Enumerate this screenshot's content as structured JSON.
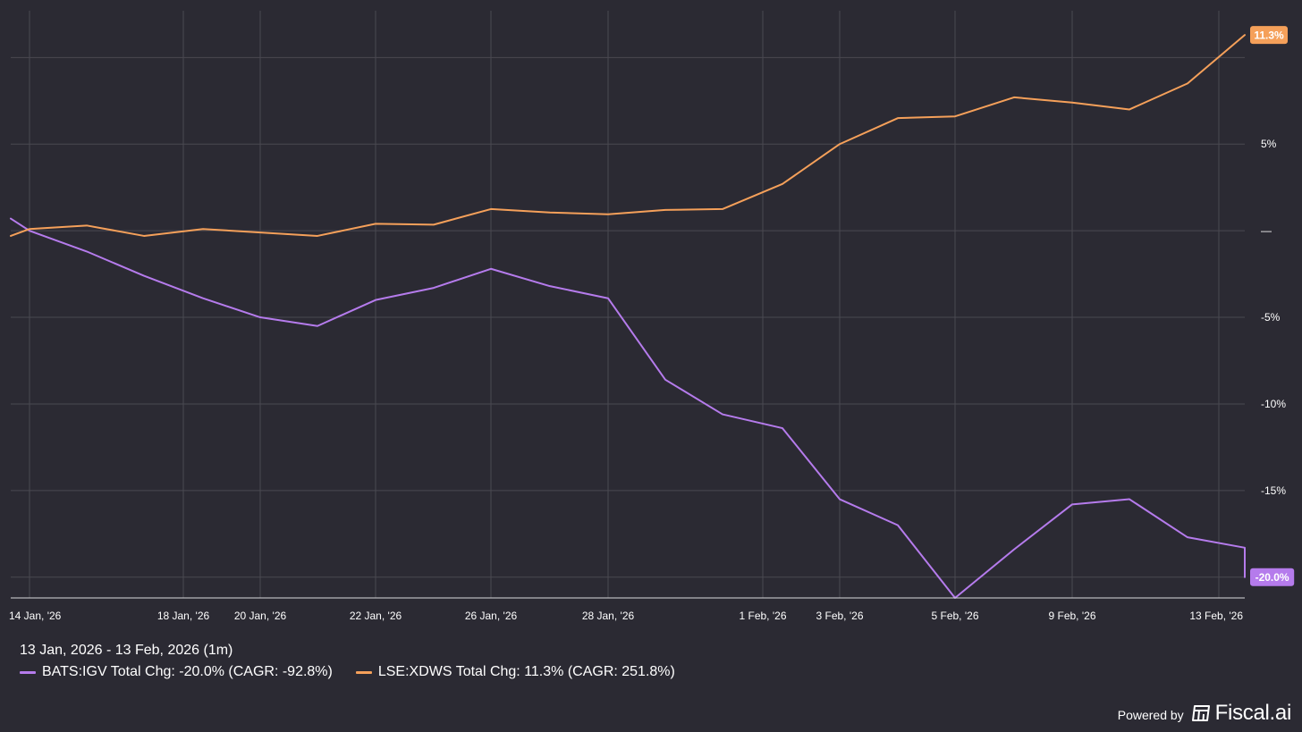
{
  "chart_data": {
    "type": "line",
    "x": [
      "13 Jan, '26",
      "14 Jan, '26",
      "15 Jan, '26",
      "16 Jan, '26",
      "17 Jan, '26",
      "18 Jan, '26",
      "19 Jan, '26",
      "20 Jan, '26",
      "21 Jan, '26",
      "22 Jan, '26",
      "23 Jan, '26",
      "24 Jan, '26",
      "26 Jan, '26",
      "27 Jan, '26",
      "28 Jan, '26",
      "29 Jan, '26",
      "30 Jan, '26",
      "31 Jan, '26",
      "1 Feb, '26",
      "3 Feb, '26",
      "4 Feb, '26",
      "5 Feb, '26",
      "6 Feb, '26",
      "7 Feb, '26",
      "9 Feb, '26",
      "10 Feb, '26",
      "11 Feb, '26",
      "13 Feb, '26"
    ],
    "x_ticks": [
      "14 Jan, '26",
      "18 Jan, '26",
      "20 Jan, '26",
      "22 Jan, '26",
      "26 Jan, '26",
      "28 Jan, '26",
      "1 Feb, '26",
      "3 Feb, '26",
      "5 Feb, '26",
      "9 Feb, '26",
      "13 Feb, '26"
    ],
    "series": [
      {
        "name": "BATS:IGV",
        "color": "#b57bec",
        "points": [
          {
            "x": "13 Jan, '26",
            "y": 0.7
          },
          {
            "x": "14 Jan, '26",
            "y": 0.0
          },
          {
            "x": "15 Jan, '26",
            "y": -1.2
          },
          {
            "x": "16 Jan, '26",
            "y": -2.6
          },
          {
            "x": "17 Jan, '26",
            "y": -3.9
          },
          {
            "x": "18 Jan, '26",
            "y": -5.0
          },
          {
            "x": "19 Jan, '26",
            "y": -5.5
          },
          {
            "x": "20 Jan, '26",
            "y": -4.0
          },
          {
            "x": "21 Jan, '26",
            "y": -3.3
          },
          {
            "x": "22 Jan, '26",
            "y": -2.2
          },
          {
            "x": "23 Jan, '26",
            "y": -3.2
          },
          {
            "x": "24 Jan, '26",
            "y": -3.9
          },
          {
            "x": "26 Jan, '26",
            "y": -8.6
          },
          {
            "x": "27 Jan, '26",
            "y": -10.6
          },
          {
            "x": "28 Jan, '26",
            "y": -11.4
          },
          {
            "x": "29 Jan, '26",
            "y": -15.5
          },
          {
            "x": "30 Jan, '26",
            "y": -17.0
          },
          {
            "x": "31 Jan, '26",
            "y": -21.2
          },
          {
            "x": "1 Feb, '26",
            "y": -18.4
          },
          {
            "x": "3 Feb, '26",
            "y": -15.8
          },
          {
            "x": "4 Feb, '26",
            "y": -15.5
          },
          {
            "x": "5 Feb, '26",
            "y": -17.7
          },
          {
            "x": "6 Feb, '26",
            "y": -18.3
          },
          {
            "x": "7 Feb, '26",
            "y": -20.0
          }
        ]
      },
      {
        "name": "LSE:XDWS",
        "color": "#f5a05a",
        "points": [
          {
            "x": "13 Jan, '26",
            "y": -0.3
          },
          {
            "x": "14 Jan, '26",
            "y": 0.1
          },
          {
            "x": "15 Jan, '26",
            "y": 0.3
          },
          {
            "x": "16 Jan, '26",
            "y": -0.3
          },
          {
            "x": "17 Jan, '26",
            "y": 0.1
          },
          {
            "x": "18 Jan, '26",
            "y": -0.1
          },
          {
            "x": "19 Jan, '26",
            "y": -0.3
          },
          {
            "x": "20 Jan, '26",
            "y": 0.4
          },
          {
            "x": "21 Jan, '26",
            "y": 0.35
          },
          {
            "x": "22 Jan, '26",
            "y": 1.25
          },
          {
            "x": "23 Jan, '26",
            "y": 1.05
          },
          {
            "x": "24 Jan, '26",
            "y": 0.95
          },
          {
            "x": "26 Jan, '26",
            "y": 1.2
          },
          {
            "x": "27 Jan, '26",
            "y": 1.25
          },
          {
            "x": "28 Jan, '26",
            "y": 2.7
          },
          {
            "x": "29 Jan, '26",
            "y": 5.0
          },
          {
            "x": "30 Jan, '26",
            "y": 6.5
          },
          {
            "x": "31 Jan, '26",
            "y": 6.6
          },
          {
            "x": "1 Feb, '26",
            "y": 7.7
          },
          {
            "x": "3 Feb, '26",
            "y": 7.4
          },
          {
            "x": "4 Feb, '26",
            "y": 7.0
          },
          {
            "x": "5 Feb, '26",
            "y": 8.5
          },
          {
            "x": "6 Feb, '26",
            "y": 11.3
          }
        ]
      }
    ],
    "y_ticks": [
      {
        "value": 5,
        "label": "5%"
      },
      {
        "value": 0,
        "label": "—"
      },
      {
        "value": -5,
        "label": "-5%"
      },
      {
        "value": -10,
        "label": "-10%"
      },
      {
        "value": -15,
        "label": "-15%"
      },
      {
        "value": -20,
        "label": "-20%"
      }
    ],
    "ylim": [
      -21.2,
      12.7
    ],
    "end_labels": [
      {
        "series": "LSE:XDWS",
        "text": "11.3%",
        "value": 11.3,
        "color": "#f5a05a"
      },
      {
        "series": "BATS:IGV",
        "text": "-20.0%",
        "value": -20.0,
        "color": "#b57bec"
      }
    ],
    "grid": true,
    "legend_placement": "bottom-left"
  },
  "legend": {
    "date_range": "13 Jan, 2026 - 13 Feb, 2026 (1m)",
    "items": [
      {
        "label": "BATS:IGV Total Chg: -20.0% (CAGR: -92.8%)",
        "color": "#b57bec"
      },
      {
        "label": "LSE:XDWS Total Chg: 11.3% (CAGR: 251.8%)",
        "color": "#f5a05a"
      }
    ]
  },
  "brand": {
    "prefix": "Powered by",
    "name": "Fiscal.ai",
    "icon": "fiscal-logo-icon"
  },
  "colors": {
    "background": "#2b2a33",
    "igv": "#b57bec",
    "xdws": "#f5a05a"
  }
}
